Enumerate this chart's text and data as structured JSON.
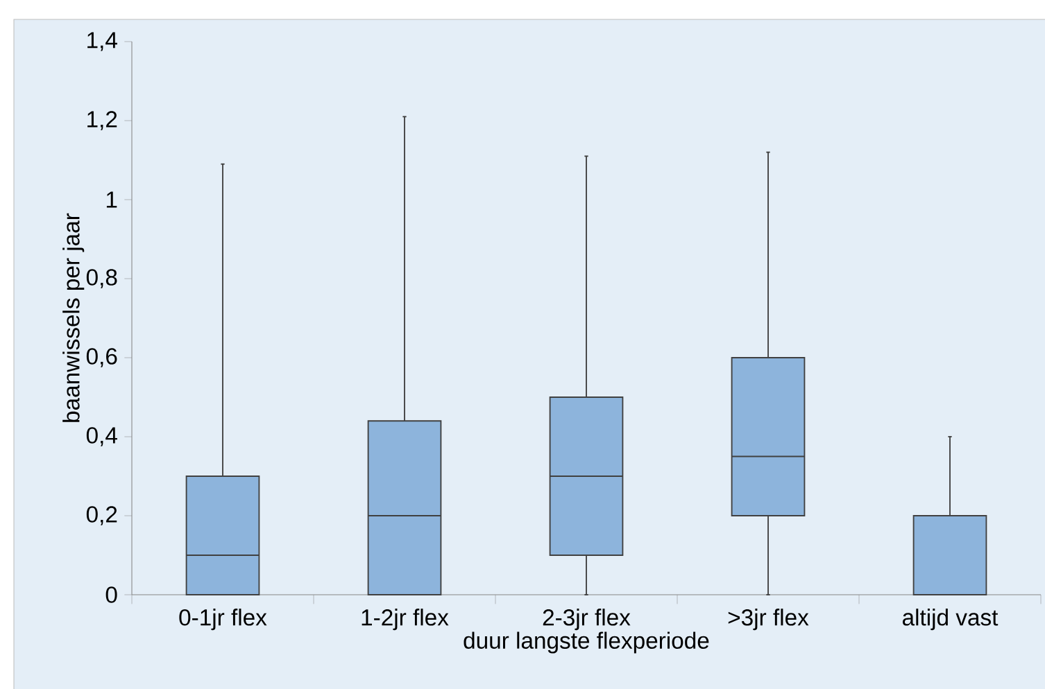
{
  "chart_data": {
    "type": "box",
    "xlabel": "duur langste flexperiode",
    "ylabel": "baanwissels per jaar",
    "categories": [
      "0-1jr flex",
      "1-2jr flex",
      "2-3jr flex",
      ">3jr flex",
      "altijd vast"
    ],
    "color": "#8db4dc",
    "boxes": [
      {
        "low": 0,
        "q1": 0,
        "median": 0.1,
        "q3": 0.3,
        "high": 1.09
      },
      {
        "low": 0,
        "q1": 0,
        "median": 0.2,
        "q3": 0.44,
        "high": 1.21
      },
      {
        "low": 0,
        "q1": 0.1,
        "median": 0.3,
        "q3": 0.5,
        "high": 1.11
      },
      {
        "low": 0,
        "q1": 0.2,
        "median": 0.35,
        "q3": 0.6,
        "high": 1.12
      },
      {
        "low": 0,
        "q1": 0,
        "median": 0,
        "q3": 0.2,
        "high": 0.4
      }
    ],
    "ylim": [
      0,
      1.4
    ],
    "yticks": [
      0,
      {
        "value": 0.2,
        "label": "0,2"
      },
      {
        "value": 0.4,
        "label": "0,4"
      },
      {
        "value": 0.6,
        "label": "0,6"
      },
      {
        "value": 0.8,
        "label": "0,8"
      },
      1,
      {
        "value": 1.2,
        "label": "1,2"
      },
      {
        "value": 1.4,
        "label": "1,4"
      }
    ]
  }
}
